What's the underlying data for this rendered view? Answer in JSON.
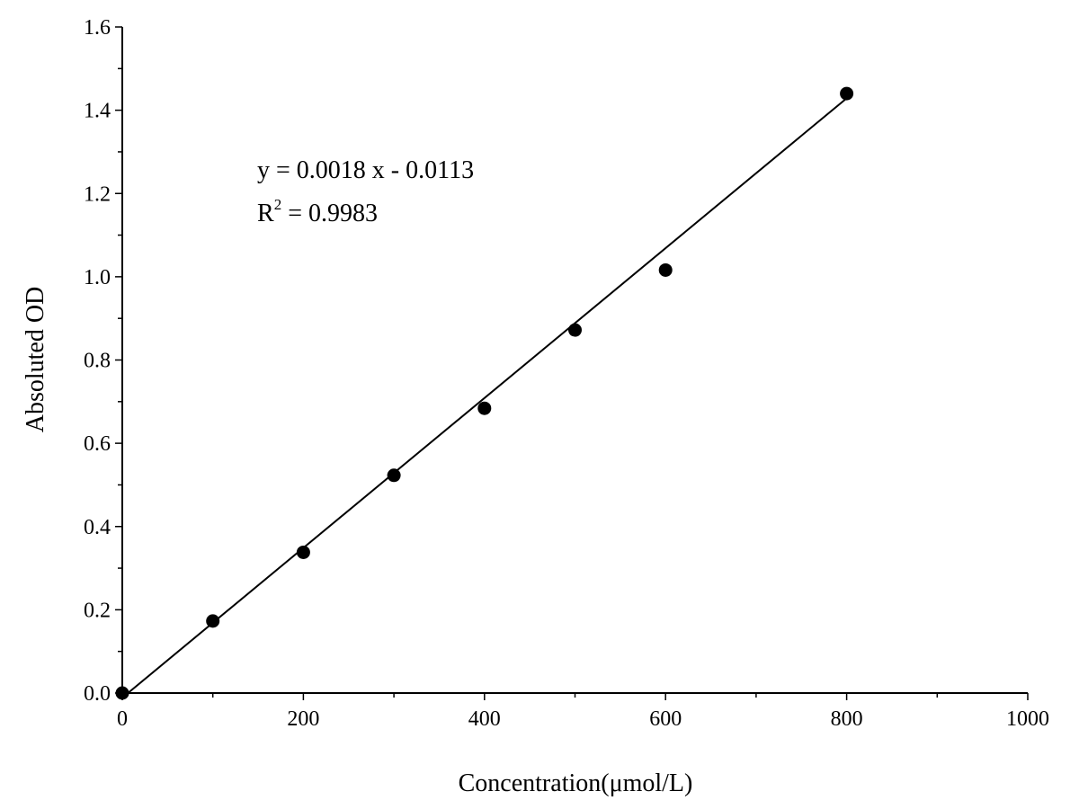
{
  "chart_data": {
    "type": "scatter",
    "title": "",
    "xlabel": "Concentration(μmol/L)",
    "ylabel": "Absoluted OD",
    "xlim": [
      0,
      1000
    ],
    "ylim": [
      0.0,
      1.6
    ],
    "x_ticks": [
      "0",
      "200",
      "400",
      "600",
      "800",
      "1000"
    ],
    "y_ticks": [
      "0.0",
      "0.2",
      "0.4",
      "0.6",
      "0.8",
      "1.0",
      "1.2",
      "1.4",
      "1.6"
    ],
    "x_tick_values": [
      0,
      200,
      400,
      600,
      800,
      1000
    ],
    "y_tick_values": [
      0.0,
      0.2,
      0.4,
      0.6,
      0.8,
      1.0,
      1.2,
      1.4,
      1.6
    ],
    "x_minor_step": 100,
    "y_minor_step": 0.1,
    "grid": false,
    "legend": "none",
    "series": [
      {
        "x": [
          0,
          100,
          200,
          300,
          400,
          500,
          600,
          800
        ],
        "y": [
          0.0,
          0.173,
          0.338,
          0.523,
          0.684,
          0.872,
          1.016,
          1.44
        ]
      }
    ],
    "fit_line": {
      "slope": 0.0018,
      "intercept": -0.0113,
      "x_range": [
        6.28,
        800
      ]
    },
    "annotations": {
      "equation": "y = 0.0018 x - 0.0113",
      "r2_prefix": "R",
      "r2_superscript": "2",
      "r2_value": " = 0.9983"
    },
    "colors": {
      "marker": "#000000",
      "line": "#000000",
      "axis": "#000000"
    }
  }
}
